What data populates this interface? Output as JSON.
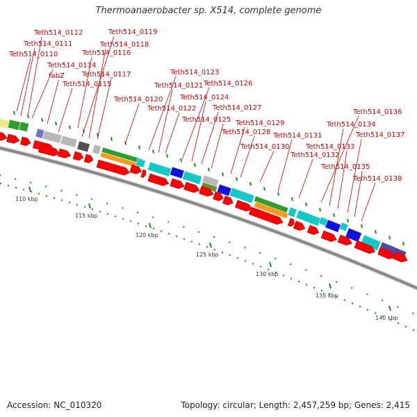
{
  "title": "Thermoanaerobacter sp. X514, complete genome",
  "footer": {
    "accession": "Accession: NC_010320",
    "topology": "Topology: circular; Length: 2,457,259 bp; Genes: 2,415"
  },
  "kbp_labels": [
    "110 kbp",
    "115 kbp",
    "120 kbp",
    "125 kbp",
    "130 kbp",
    "135 kbp",
    "140 kbp"
  ],
  "gene_labels": [
    "Teth514_0112",
    "Teth514_0111",
    "Teth514_0110",
    "Teth514_0114",
    "fabZ",
    "Teth514_0115",
    "Teth514_0119",
    "Teth514_0118",
    "Teth514_0116",
    "Teth514_0117",
    "Teth514_0120",
    "Teth514_0123",
    "Teth514_0121",
    "Teth514_0122",
    "Teth514_0126",
    "Teth514_0124",
    "Teth514_0127",
    "Teth514_0125",
    "Teth514_0129",
    "Teth514_0128",
    "Teth514_0130",
    "Teth514_0131",
    "Teth514_0132",
    "Teth514_0136",
    "Teth514_0134",
    "Teth514_0133",
    "Teth514_0137",
    "Teth514_0135",
    "Teth514_0138"
  ],
  "colors": {
    "backbone": "#888888",
    "cds_arrow": "#ff0000",
    "label_text": "#cc0000",
    "tick": "#1a8a1a",
    "cog_green": "#2e9e2e",
    "cog_yellow": "#ecec8c",
    "cog_gray": "#b8b8b8",
    "cog_darkgray": "#505050",
    "cog_cyan": "#12c8c8",
    "cog_blue": "#1010e0",
    "cog_olive": "#6e8c2e",
    "cog_orange": "#ff9a1a",
    "cog_purple": "#4a4aa0",
    "cog_violet": "#7070d0"
  }
}
